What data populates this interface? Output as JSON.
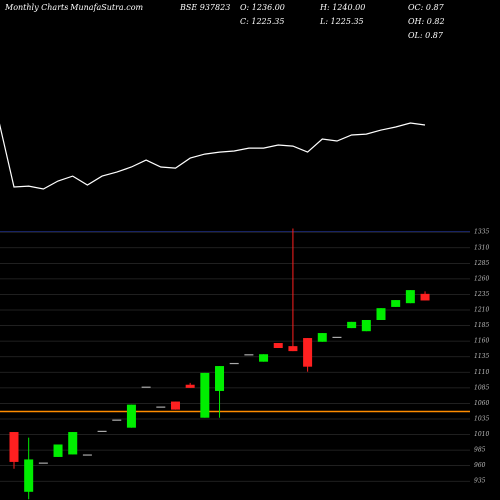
{
  "header": {
    "chart_kind": "Monthly Charts",
    "site": "- MunafaSutra.com",
    "symbol": "BSE 937823",
    "open": "O: 1236.00",
    "high": "H: 1240.00",
    "oc": "OC: 0.87",
    "close": "C: 1225.35",
    "low": "L: 1225.35",
    "oh": "OH: 0.82",
    "ol": "OL: 0.87"
  },
  "chart_data": [
    {
      "type": "line",
      "color": "#ffffff",
      "ylim": [
        900,
        1260
      ],
      "values": [
        1224,
        936,
        940,
        927,
        963,
        985,
        945,
        985,
        1003,
        1026,
        1057,
        1026,
        1021,
        1066,
        1084,
        1093,
        1098,
        1111,
        1111,
        1125,
        1120,
        1093,
        1152,
        1143,
        1170,
        1174,
        1192,
        1206,
        1224,
        1215
      ]
    },
    {
      "type": "candlestick",
      "up_color": "#00ee00",
      "down_color": "#ff2020",
      "flat_color": "#aaaaaa",
      "ylim": [
        900,
        1345
      ],
      "yticks": [
        935,
        960,
        985,
        1010,
        1035,
        1060,
        1085,
        1110,
        1135,
        1160,
        1185,
        1210,
        1235,
        1260,
        1285,
        1310,
        1335
      ],
      "grid": true,
      "hline": 1047,
      "hline_color": "#ff8c00",
      "open": [
        1014,
        918,
        965,
        974,
        978,
        978,
        1016,
        1034,
        1021,
        1087,
        1055,
        1063,
        1090,
        1037,
        1080,
        1125,
        1139,
        1127,
        1157,
        1152,
        1165,
        1159,
        1167,
        1181,
        1176,
        1194,
        1215,
        1221,
        1236
      ],
      "close": [
        966,
        970,
        965,
        994,
        1014,
        978,
        1016,
        1034,
        1058,
        1087,
        1055,
        1050,
        1085,
        1109,
        1120,
        1125,
        1139,
        1139,
        1149,
        1144,
        1119,
        1173,
        1167,
        1191,
        1194,
        1213,
        1226,
        1242,
        1225.35
      ],
      "high": [
        1014,
        1005,
        965,
        994,
        1014,
        978,
        1016,
        1034,
        1058,
        1087,
        1055,
        1063,
        1093,
        1109,
        1120,
        1125,
        1139,
        1139,
        1157,
        1341,
        1165,
        1173,
        1167,
        1191,
        1194,
        1213,
        1226,
        1242,
        1240
      ],
      "low": [
        955,
        906,
        965,
        974,
        978,
        978,
        1016,
        1034,
        1021,
        1087,
        1055,
        1050,
        1085,
        1037,
        1037,
        1125,
        1139,
        1127,
        1149,
        1144,
        1111,
        1159,
        1167,
        1181,
        1176,
        1194,
        1215,
        1221,
        1225.35
      ]
    }
  ]
}
